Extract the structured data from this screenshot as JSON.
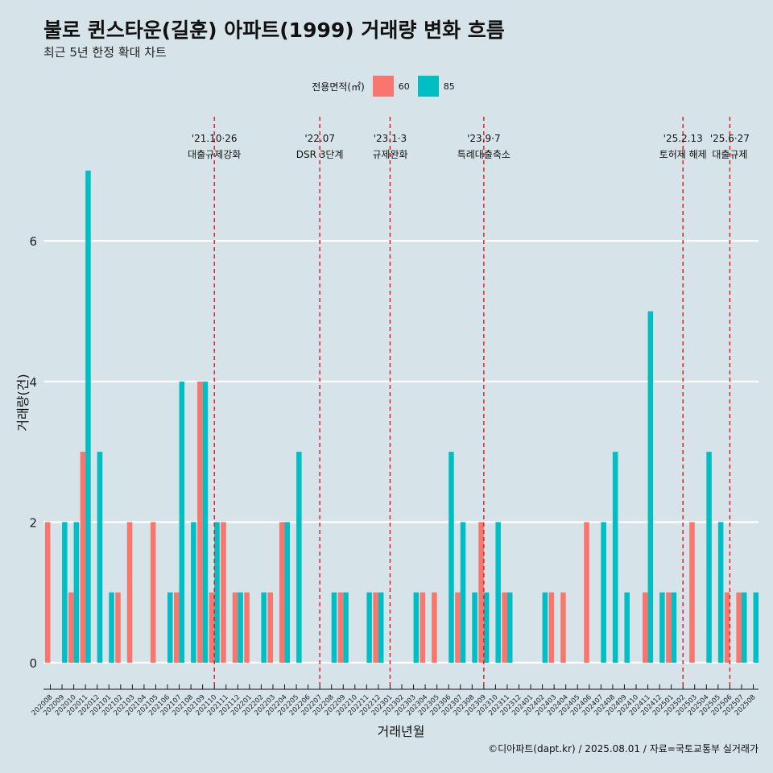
{
  "title": "불로 퀸스타운(길훈) 아파트(1999) 거래량 변화 흐름",
  "subtitle": "최근 5년 한정 확대 차트",
  "caption": "©디아파트(dapt.kr) / 2025.08.01 / 자료=국토교통부 실거래가",
  "legend": {
    "title": "전용면적(㎡)",
    "items": [
      {
        "label": "60",
        "color": "#f8766d"
      },
      {
        "label": "85",
        "color": "#00bfc4"
      }
    ]
  },
  "chart_data": {
    "type": "bar",
    "xlabel": "거래년월",
    "ylabel": "거래량(건)",
    "ylim": [
      0,
      7
    ],
    "yticks": [
      0,
      2,
      4,
      6
    ],
    "grid": "horizontal",
    "legend_position": "top",
    "categories": [
      "202008",
      "202009",
      "202010",
      "202011",
      "202012",
      "202101",
      "202102",
      "202103",
      "202104",
      "202105",
      "202106",
      "202107",
      "202108",
      "202109",
      "202110",
      "202111",
      "202112",
      "202201",
      "202202",
      "202203",
      "202204",
      "202205",
      "202206",
      "202207",
      "202208",
      "202209",
      "202210",
      "202211",
      "202212",
      "202301",
      "202302",
      "202303",
      "202304",
      "202305",
      "202306",
      "202307",
      "202308",
      "202309",
      "202310",
      "202311",
      "202312",
      "202401",
      "202402",
      "202403",
      "202404",
      "202405",
      "202406",
      "202407",
      "202408",
      "202409",
      "202410",
      "202411",
      "202412",
      "202501",
      "202502",
      "202503",
      "202504",
      "202505",
      "202506",
      "202507",
      "202508"
    ],
    "series": [
      {
        "name": "60",
        "color": "#f8766d",
        "values": [
          2,
          0,
          1,
          3,
          0,
          0,
          1,
          2,
          0,
          2,
          0,
          1,
          0,
          4,
          1,
          2,
          1,
          1,
          0,
          1,
          2,
          0,
          0,
          0,
          0,
          1,
          0,
          0,
          1,
          0,
          0,
          0,
          1,
          1,
          0,
          1,
          0,
          2,
          0,
          1,
          0,
          0,
          0,
          1,
          1,
          0,
          2,
          0,
          0,
          0,
          0,
          1,
          0,
          1,
          0,
          2,
          0,
          0,
          1,
          1,
          0
        ]
      },
      {
        "name": "85",
        "color": "#00bfc4",
        "values": [
          0,
          2,
          2,
          7,
          3,
          1,
          0,
          0,
          0,
          0,
          1,
          4,
          2,
          4,
          2,
          0,
          1,
          0,
          1,
          0,
          2,
          3,
          0,
          0,
          1,
          1,
          0,
          1,
          1,
          0,
          0,
          1,
          0,
          0,
          3,
          2,
          1,
          1,
          2,
          1,
          0,
          0,
          1,
          0,
          0,
          0,
          0,
          2,
          3,
          1,
          0,
          5,
          1,
          1,
          0,
          0,
          3,
          2,
          0,
          1,
          1
        ]
      }
    ],
    "events": [
      {
        "at": "202110",
        "date": "'21.10·26",
        "label": "대출규제강화"
      },
      {
        "at": "202207",
        "date": "'22.07",
        "label": "DSR 3단계"
      },
      {
        "at": "202301",
        "date": "'23.1·3",
        "label": "규제완화"
      },
      {
        "at": "202309",
        "date": "'23.9·7",
        "label": "특례대출축소"
      },
      {
        "at": "202502",
        "date": "'25.2.13",
        "label": "토허제 해제"
      },
      {
        "at": "202506",
        "date": "'25.6·27",
        "label": "대출규제"
      }
    ]
  }
}
